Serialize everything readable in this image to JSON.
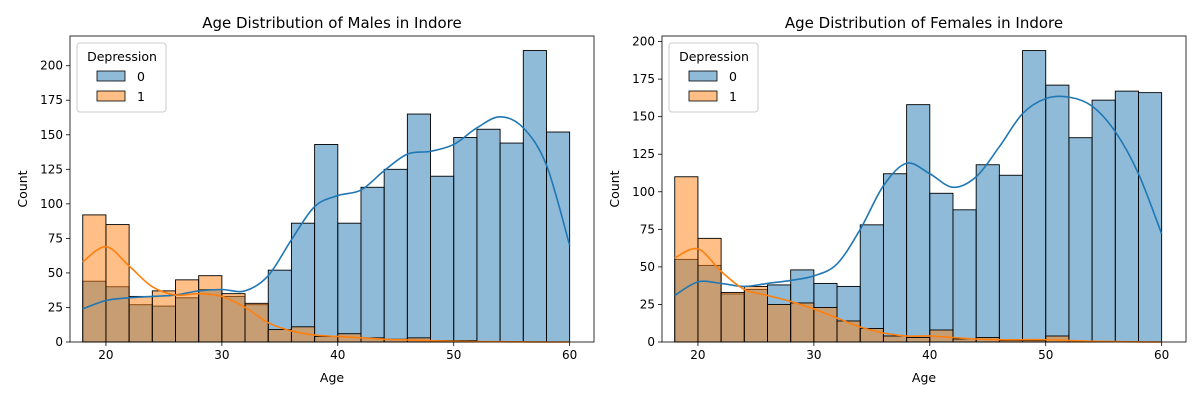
{
  "chart_data": [
    {
      "type": "histogram",
      "title": "Age Distribution of Males in Indore",
      "xlabel": "Age",
      "ylabel": "Count",
      "xlim": [
        16.9,
        62.1
      ],
      "ylim": [
        0,
        221.5
      ],
      "xticks": [
        20,
        30,
        40,
        50,
        60
      ],
      "yticks": [
        0,
        25,
        50,
        75,
        100,
        125,
        150,
        175,
        200
      ],
      "bin_edges": [
        18,
        20,
        22,
        24,
        26,
        28,
        30,
        32,
        34,
        36,
        38,
        40,
        42,
        44,
        46,
        48,
        50,
        52,
        54,
        56,
        58,
        60
      ],
      "legend": {
        "title": "Depression",
        "placement": "upper-left"
      },
      "series": [
        {
          "name": "0",
          "color": "#1f77b4",
          "values": [
            44,
            40,
            27,
            26,
            32,
            38,
            33,
            27,
            52,
            86,
            143,
            86,
            112,
            125,
            165,
            120,
            148,
            154,
            144,
            211,
            152
          ],
          "kde_x": [
            18,
            20,
            22,
            24,
            26,
            28,
            30,
            32,
            34,
            36,
            38,
            40,
            42,
            44,
            46,
            48,
            50,
            52,
            54,
            56,
            58,
            60
          ],
          "kde_y": [
            24,
            30,
            32,
            33,
            34,
            37,
            38,
            37,
            48,
            74,
            98,
            106,
            110,
            124,
            136,
            138,
            143,
            155,
            163,
            155,
            128,
            70
          ]
        },
        {
          "name": "1",
          "color": "#ff7f0e",
          "values": [
            92,
            85,
            33,
            37,
            45,
            48,
            35,
            28,
            9,
            11,
            4,
            6,
            3,
            2,
            3,
            1,
            1,
            0,
            0,
            0,
            0
          ],
          "kde_x": [
            18,
            20,
            22,
            24,
            26,
            28,
            30,
            32,
            34,
            36,
            38,
            40,
            42,
            44,
            46,
            48,
            50,
            52,
            54,
            56,
            58,
            60
          ],
          "kde_y": [
            58,
            69,
            55,
            40,
            34,
            35,
            33,
            25,
            14,
            8,
            5,
            4,
            3,
            2,
            1.5,
            1,
            0.5,
            0.3,
            0.2,
            0.1,
            0,
            0
          ]
        }
      ]
    },
    {
      "type": "histogram",
      "title": "Age Distribution of Females in Indore",
      "xlabel": "Age",
      "ylabel": "Count",
      "xlim": [
        16.9,
        62.1
      ],
      "ylim": [
        0,
        203.7
      ],
      "xticks": [
        20,
        30,
        40,
        50,
        60
      ],
      "yticks": [
        0,
        25,
        50,
        75,
        100,
        125,
        150,
        175,
        200
      ],
      "bin_edges": [
        18,
        20,
        22,
        24,
        26,
        28,
        30,
        32,
        34,
        36,
        38,
        40,
        42,
        44,
        46,
        48,
        50,
        52,
        54,
        56,
        58,
        60
      ],
      "legend": {
        "title": "Depression",
        "placement": "upper-left"
      },
      "series": [
        {
          "name": "0",
          "color": "#1f77b4",
          "values": [
            55,
            51,
            32,
            35,
            38,
            48,
            39,
            37,
            78,
            112,
            158,
            99,
            88,
            118,
            111,
            194,
            171,
            136,
            161,
            167,
            166
          ],
          "kde_x": [
            18,
            20,
            22,
            24,
            26,
            28,
            30,
            32,
            34,
            36,
            38,
            40,
            42,
            44,
            46,
            48,
            50,
            52,
            54,
            56,
            58,
            60
          ],
          "kde_y": [
            31,
            40,
            39,
            37,
            39,
            41,
            44,
            52,
            75,
            104,
            119,
            112,
            103,
            110,
            130,
            152,
            162,
            163,
            157,
            140,
            112,
            72
          ]
        },
        {
          "name": "1",
          "color": "#ff7f0e",
          "values": [
            110,
            69,
            33,
            37,
            25,
            26,
            23,
            14,
            9,
            4,
            3,
            8,
            2,
            3,
            1,
            1,
            4,
            0,
            0,
            0,
            0
          ],
          "kde_x": [
            18,
            20,
            22,
            24,
            26,
            28,
            30,
            32,
            34,
            36,
            38,
            40,
            42,
            44,
            46,
            48,
            50,
            52,
            54,
            56,
            58,
            60
          ],
          "kde_y": [
            56,
            62,
            47,
            35,
            31,
            27,
            22,
            16,
            10,
            6,
            4,
            4,
            3,
            2,
            1.5,
            1.5,
            1.5,
            1,
            0.5,
            0.3,
            0.1,
            0
          ]
        }
      ]
    }
  ]
}
